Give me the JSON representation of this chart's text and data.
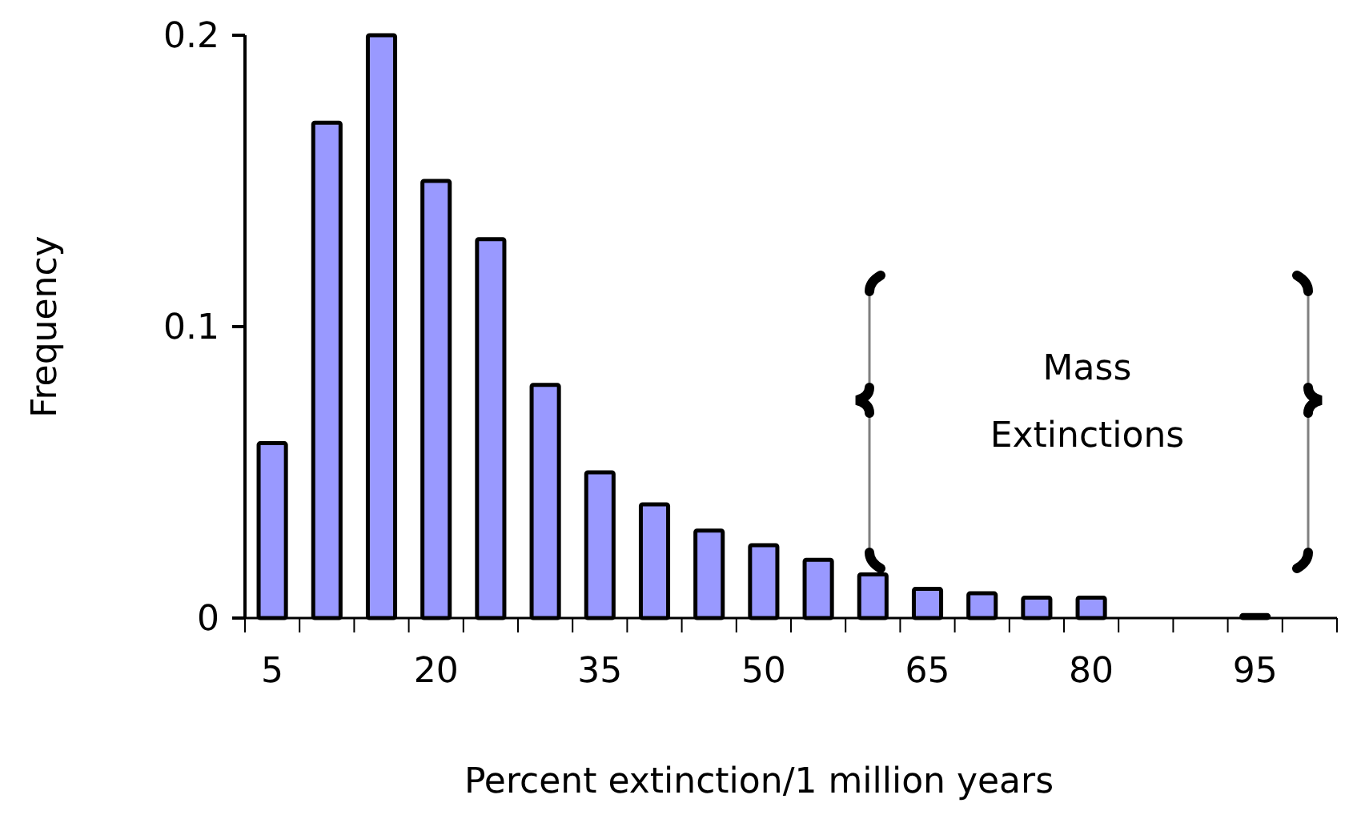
{
  "chart_data": {
    "type": "bar",
    "xlabel": "Percent extinction/1 million years",
    "ylabel": "Frequency",
    "categories": [
      "5",
      null,
      null,
      "20",
      null,
      null,
      "35",
      null,
      null,
      "50",
      null,
      null,
      "65",
      null,
      null,
      "80",
      null,
      null,
      "95",
      null
    ],
    "values": [
      0.06,
      0.17,
      0.2,
      0.15,
      0.13,
      0.08,
      0.05,
      0.039,
      0.03,
      0.025,
      0.02,
      0.015,
      0.01,
      0.0085,
      0.007,
      0.007,
      0,
      0,
      0.001,
      0
    ],
    "color": "#9999ff",
    "ylim": [
      0,
      0.2
    ],
    "yticks": [
      0,
      0.1,
      0.2
    ],
    "grid": false,
    "annotations": [
      "Mass Extinctions"
    ]
  }
}
